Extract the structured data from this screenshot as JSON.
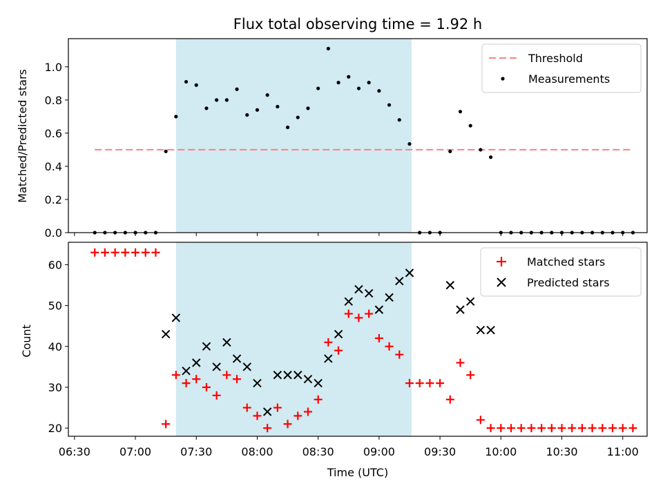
{
  "chart_data": [
    {
      "type": "scatter",
      "title": "Flux total observing time = 1.92 h",
      "ylabel": "Matched/Predicted stars",
      "xlim": [
        "06:27",
        "11:12"
      ],
      "ylim": [
        0,
        1.17
      ],
      "yticks": [
        0.0,
        0.2,
        0.4,
        0.6,
        0.8,
        1.0
      ],
      "ytick_labels": [
        "0.0",
        "0.2",
        "0.4",
        "0.6",
        "0.8",
        "1.0"
      ],
      "shaded_interval": [
        "07:20",
        "09:16"
      ],
      "shade_color": "#add8e6",
      "legend_position": "upper right",
      "threshold": {
        "name": "Threshold",
        "y": 0.5,
        "x_range": [
          "06:40",
          "11:05"
        ],
        "color": "#ff7f7f",
        "style": "dashed"
      },
      "measurements": {
        "name": "Measurements",
        "color": "#000000",
        "points": [
          [
            "06:40",
            0.0
          ],
          [
            "06:45",
            0.0
          ],
          [
            "06:50",
            0.0
          ],
          [
            "06:55",
            0.0
          ],
          [
            "07:00",
            0.0
          ],
          [
            "07:05",
            0.0
          ],
          [
            "07:10",
            0.0
          ],
          [
            "07:15",
            0.49
          ],
          [
            "07:20",
            0.7
          ],
          [
            "07:25",
            0.91
          ],
          [
            "07:30",
            0.89
          ],
          [
            "07:35",
            0.75
          ],
          [
            "07:40",
            0.8
          ],
          [
            "07:45",
            0.8
          ],
          [
            "07:50",
            0.865
          ],
          [
            "07:55",
            0.71
          ],
          [
            "08:00",
            0.74
          ],
          [
            "08:05",
            0.83
          ],
          [
            "08:10",
            0.76
          ],
          [
            "08:15",
            0.635
          ],
          [
            "08:20",
            0.695
          ],
          [
            "08:25",
            0.75
          ],
          [
            "08:30",
            0.87
          ],
          [
            "08:35",
            1.11
          ],
          [
            "08:40",
            0.905
          ],
          [
            "08:45",
            0.94
          ],
          [
            "08:50",
            0.87
          ],
          [
            "08:55",
            0.905
          ],
          [
            "09:00",
            0.855
          ],
          [
            "09:05",
            0.77
          ],
          [
            "09:10",
            0.68
          ],
          [
            "09:15",
            0.535
          ],
          [
            "09:20",
            0.0
          ],
          [
            "09:25",
            0.0
          ],
          [
            "09:30",
            0.0
          ],
          [
            "09:35",
            0.49
          ],
          [
            "09:40",
            0.73
          ],
          [
            "09:45",
            0.645
          ],
          [
            "09:50",
            0.5
          ],
          [
            "09:55",
            0.455
          ],
          [
            "10:00",
            0.0
          ],
          [
            "10:05",
            0.0
          ],
          [
            "10:10",
            0.0
          ],
          [
            "10:15",
            0.0
          ],
          [
            "10:20",
            0.0
          ],
          [
            "10:25",
            0.0
          ],
          [
            "10:30",
            0.0
          ],
          [
            "10:35",
            0.0
          ],
          [
            "10:40",
            0.0
          ],
          [
            "10:45",
            0.0
          ],
          [
            "10:50",
            0.0
          ],
          [
            "10:55",
            0.0
          ],
          [
            "11:00",
            0.0
          ],
          [
            "11:05",
            0.0
          ]
        ]
      }
    },
    {
      "type": "scatter",
      "xlabel": "Time (UTC)",
      "ylabel": "Count",
      "xlim": [
        "06:27",
        "11:12"
      ],
      "ylim": [
        18,
        65.5
      ],
      "yticks": [
        20,
        30,
        40,
        50,
        60
      ],
      "xticks": [
        "06:30",
        "07:00",
        "07:30",
        "08:00",
        "08:30",
        "09:00",
        "09:30",
        "10:00",
        "10:30",
        "11:00"
      ],
      "shaded_interval": [
        "07:20",
        "09:16"
      ],
      "shade_color": "#add8e6",
      "legend_position": "upper right",
      "series": [
        {
          "name": "Matched stars",
          "marker": "+",
          "color": "#ff0000",
          "points": [
            [
              "06:40",
              63
            ],
            [
              "06:45",
              63
            ],
            [
              "06:50",
              63
            ],
            [
              "06:55",
              63
            ],
            [
              "07:00",
              63
            ],
            [
              "07:05",
              63
            ],
            [
              "07:10",
              63
            ],
            [
              "07:15",
              21
            ],
            [
              "07:20",
              33
            ],
            [
              "07:25",
              31
            ],
            [
              "07:30",
              32
            ],
            [
              "07:35",
              30
            ],
            [
              "07:40",
              28
            ],
            [
              "07:45",
              33
            ],
            [
              "07:50",
              32
            ],
            [
              "07:55",
              25
            ],
            [
              "08:00",
              23
            ],
            [
              "08:05",
              20
            ],
            [
              "08:10",
              25
            ],
            [
              "08:15",
              21
            ],
            [
              "08:20",
              23
            ],
            [
              "08:25",
              24
            ],
            [
              "08:30",
              27
            ],
            [
              "08:35",
              41
            ],
            [
              "08:40",
              39
            ],
            [
              "08:45",
              48
            ],
            [
              "08:50",
              47
            ],
            [
              "08:55",
              48
            ],
            [
              "09:00",
              42
            ],
            [
              "09:05",
              40
            ],
            [
              "09:10",
              38
            ],
            [
              "09:15",
              31
            ],
            [
              "09:20",
              31
            ],
            [
              "09:25",
              31
            ],
            [
              "09:30",
              31
            ],
            [
              "09:35",
              27
            ],
            [
              "09:40",
              36
            ],
            [
              "09:45",
              33
            ],
            [
              "09:50",
              22
            ],
            [
              "09:55",
              20
            ],
            [
              "10:00",
              20
            ],
            [
              "10:05",
              20
            ],
            [
              "10:10",
              20
            ],
            [
              "10:15",
              20
            ],
            [
              "10:20",
              20
            ],
            [
              "10:25",
              20
            ],
            [
              "10:30",
              20
            ],
            [
              "10:35",
              20
            ],
            [
              "10:40",
              20
            ],
            [
              "10:45",
              20
            ],
            [
              "10:50",
              20
            ],
            [
              "10:55",
              20
            ],
            [
              "11:00",
              20
            ],
            [
              "11:05",
              20
            ]
          ]
        },
        {
          "name": "Predicted stars",
          "marker": "x",
          "color": "#000000",
          "points": [
            [
              "07:15",
              43
            ],
            [
              "07:20",
              47
            ],
            [
              "07:25",
              34
            ],
            [
              "07:30",
              36
            ],
            [
              "07:35",
              40
            ],
            [
              "07:40",
              35
            ],
            [
              "07:45",
              41
            ],
            [
              "07:50",
              37
            ],
            [
              "07:55",
              35
            ],
            [
              "08:00",
              31
            ],
            [
              "08:05",
              24
            ],
            [
              "08:10",
              33
            ],
            [
              "08:15",
              33
            ],
            [
              "08:20",
              33
            ],
            [
              "08:25",
              32
            ],
            [
              "08:30",
              31
            ],
            [
              "08:35",
              37
            ],
            [
              "08:40",
              43
            ],
            [
              "08:45",
              51
            ],
            [
              "08:50",
              54
            ],
            [
              "08:55",
              53
            ],
            [
              "09:00",
              49
            ],
            [
              "09:05",
              52
            ],
            [
              "09:10",
              56
            ],
            [
              "09:15",
              58
            ],
            [
              "09:35",
              55
            ],
            [
              "09:40",
              49
            ],
            [
              "09:45",
              51
            ],
            [
              "09:50",
              44
            ],
            [
              "09:55",
              44
            ]
          ]
        }
      ]
    }
  ]
}
